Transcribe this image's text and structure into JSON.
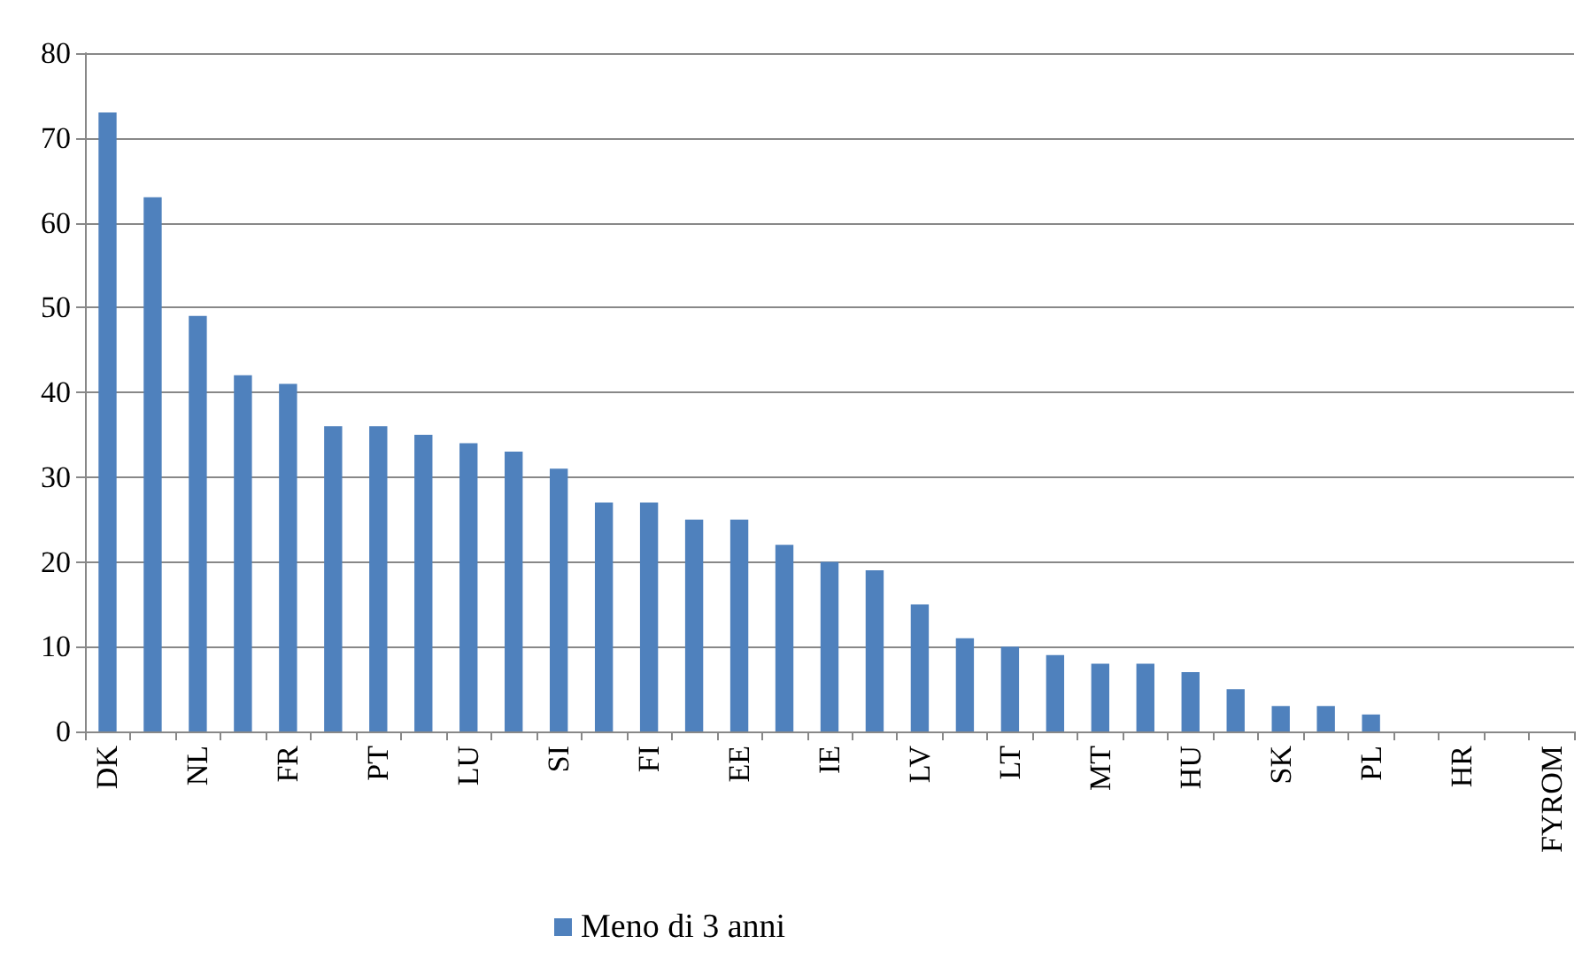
{
  "chart_data": {
    "type": "bar",
    "categories": [
      "DK",
      null,
      "NL",
      null,
      "FR",
      null,
      "PT",
      null,
      "LU",
      null,
      "SI",
      null,
      "FI",
      null,
      "EE",
      null,
      "IE",
      null,
      "LV",
      null,
      "LT",
      null,
      "MT",
      null,
      "HU",
      null,
      "SK",
      null,
      "PL",
      null,
      "HR",
      null,
      "FYROM"
    ],
    "series": [
      {
        "name": "Meno di 3 anni",
        "color": "#4f81bd",
        "values": [
          73,
          63,
          49,
          42,
          41,
          36,
          36,
          35,
          34,
          33,
          31,
          27,
          27,
          25,
          25,
          22,
          20,
          19,
          15,
          11,
          10,
          9,
          8,
          8,
          7,
          5,
          3,
          3,
          2,
          0,
          0,
          0,
          0
        ]
      }
    ],
    "ylim": [
      0,
      80
    ],
    "yticks": [
      0,
      10,
      20,
      30,
      40,
      50,
      60,
      70,
      80
    ],
    "grid": "y",
    "legend": "bottom"
  }
}
